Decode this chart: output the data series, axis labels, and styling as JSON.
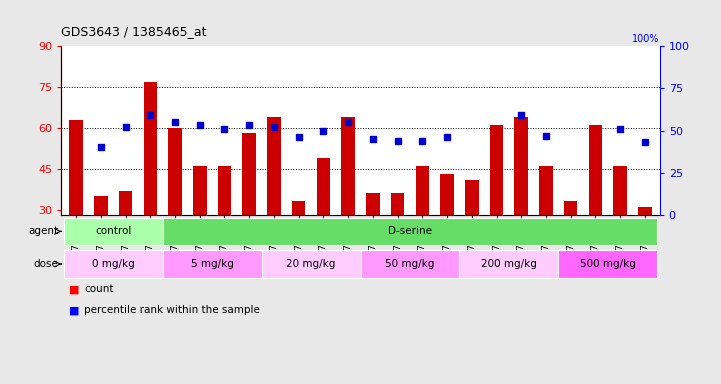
{
  "title": "GDS3643 / 1385465_at",
  "samples": [
    "GSM271362",
    "GSM271365",
    "GSM271367",
    "GSM271369",
    "GSM271372",
    "GSM271375",
    "GSM271377",
    "GSM271379",
    "GSM271382",
    "GSM271383",
    "GSM271384",
    "GSM271385",
    "GSM271386",
    "GSM271387",
    "GSM271388",
    "GSM271389",
    "GSM271390",
    "GSM271391",
    "GSM271392",
    "GSM271393",
    "GSM271394",
    "GSM271395",
    "GSM271396",
    "GSM271397"
  ],
  "bar_values": [
    63,
    35,
    37,
    77,
    60,
    46,
    46,
    58,
    64,
    33,
    49,
    64,
    36,
    36,
    46,
    43,
    41,
    61,
    64,
    46,
    33,
    61,
    46,
    31
  ],
  "blue_values": [
    null,
    40,
    52,
    59,
    55,
    53,
    51,
    53,
    52,
    46,
    50,
    55,
    45,
    44,
    44,
    46,
    null,
    null,
    59,
    47,
    null,
    null,
    51,
    43
  ],
  "bar_color": "#cc0000",
  "blue_color": "#0000cc",
  "ylim_left": [
    28,
    90
  ],
  "ylim_right": [
    0,
    100
  ],
  "yticks_left": [
    30,
    45,
    60,
    75,
    90
  ],
  "yticks_right": [
    0,
    25,
    50,
    75,
    100
  ],
  "grid_values": [
    45,
    60,
    75
  ],
  "agent_groups": [
    {
      "label": "control",
      "start": 0,
      "end": 4,
      "color": "#aaffaa"
    },
    {
      "label": "D-serine",
      "start": 4,
      "end": 24,
      "color": "#66dd66"
    }
  ],
  "dose_groups": [
    {
      "label": "0 mg/kg",
      "start": 0,
      "end": 4,
      "color": "#ffccff"
    },
    {
      "label": "5 mg/kg",
      "start": 4,
      "end": 8,
      "color": "#ff99ff"
    },
    {
      "label": "20 mg/kg",
      "start": 8,
      "end": 12,
      "color": "#ffccff"
    },
    {
      "label": "50 mg/kg",
      "start": 12,
      "end": 16,
      "color": "#ff99ff"
    },
    {
      "label": "200 mg/kg",
      "start": 16,
      "end": 20,
      "color": "#ffccff"
    },
    {
      "label": "500 mg/kg",
      "start": 20,
      "end": 24,
      "color": "#ff66ff"
    }
  ],
  "bg_color": "#e8e8e8",
  "plot_bg": "#ffffff"
}
